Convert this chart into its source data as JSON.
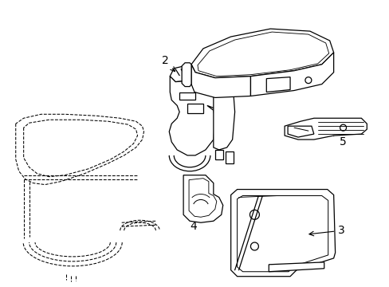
{
  "bg_color": "#ffffff",
  "line_color": "#000000",
  "figsize": [
    4.89,
    3.6
  ],
  "dpi": 100,
  "lw": 0.9,
  "dlw": 0.75
}
